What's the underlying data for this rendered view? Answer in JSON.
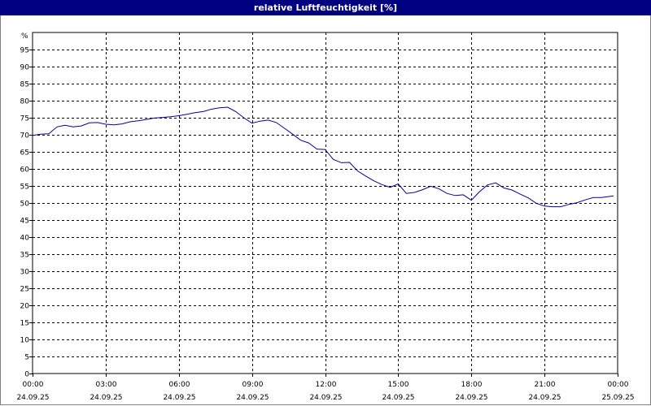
{
  "window": {
    "title": "relative Luftfeuchtigkeit [%]"
  },
  "colors": {
    "titlebar": "#000080",
    "line": "#0000a0",
    "grid": "#000000"
  },
  "chart_data": {
    "type": "line",
    "title": "relative Luftfeuchtigkeit [%]",
    "ylabel": "%",
    "xlabel": "",
    "ylim": [
      0,
      100
    ],
    "yticks": [
      0,
      5,
      10,
      15,
      20,
      25,
      30,
      35,
      40,
      45,
      50,
      55,
      60,
      65,
      70,
      75,
      80,
      85,
      90,
      95
    ],
    "xlim": [
      "24.09.25 00:00",
      "25.09.25 00:00"
    ],
    "xticks": [
      {
        "time": "00:00",
        "date": "24.09.25"
      },
      {
        "time": "03:00",
        "date": "24.09.25"
      },
      {
        "time": "06:00",
        "date": "24.09.25"
      },
      {
        "time": "09:00",
        "date": "24.09.25"
      },
      {
        "time": "12:00",
        "date": "24.09.25"
      },
      {
        "time": "15:00",
        "date": "24.09.25"
      },
      {
        "time": "18:00",
        "date": "24.09.25"
      },
      {
        "time": "21:00",
        "date": "24.09.25"
      },
      {
        "time": "00:00",
        "date": "25.09.25"
      }
    ],
    "grid": true,
    "series": [
      {
        "points": [
          [
            "24.09.25 00:00",
            69.8
          ],
          [
            "24.09.25 00:20",
            70.2
          ],
          [
            "24.09.25 00:40",
            70.3
          ],
          [
            "24.09.25 01:00",
            72.3
          ],
          [
            "24.09.25 01:20",
            72.8
          ],
          [
            "24.09.25 01:40",
            72.3
          ],
          [
            "24.09.25 02:00",
            72.6
          ],
          [
            "24.09.25 02:20",
            73.5
          ],
          [
            "24.09.25 02:40",
            73.6
          ],
          [
            "24.09.25 03:00",
            73.1
          ],
          [
            "24.09.25 03:20",
            72.9
          ],
          [
            "24.09.25 03:40",
            73.2
          ],
          [
            "24.09.25 04:00",
            73.8
          ],
          [
            "24.09.25 04:20",
            74.1
          ],
          [
            "24.09.25 04:40",
            74.5
          ],
          [
            "24.09.25 05:00",
            74.9
          ],
          [
            "24.09.25 05:20",
            75.1
          ],
          [
            "24.09.25 05:40",
            75.3
          ],
          [
            "24.09.25 06:00",
            75.6
          ],
          [
            "24.09.25 06:20",
            76.0
          ],
          [
            "24.09.25 06:40",
            76.5
          ],
          [
            "24.09.25 07:00",
            76.8
          ],
          [
            "24.09.25 07:20",
            77.5
          ],
          [
            "24.09.25 07:40",
            77.9
          ],
          [
            "24.09.25 08:00",
            78.1
          ],
          [
            "24.09.25 08:20",
            76.8
          ],
          [
            "24.09.25 08:40",
            75.0
          ],
          [
            "24.09.25 09:00",
            73.4
          ],
          [
            "24.09.25 09:20",
            74.0
          ],
          [
            "24.09.25 09:40",
            74.3
          ],
          [
            "24.09.25 10:00",
            73.6
          ],
          [
            "24.09.25 10:20",
            71.9
          ],
          [
            "24.09.25 10:40",
            70.2
          ],
          [
            "24.09.25 11:00",
            68.4
          ],
          [
            "24.09.25 11:20",
            67.6
          ],
          [
            "24.09.25 11:40",
            65.8
          ],
          [
            "24.09.25 12:00",
            65.7
          ],
          [
            "24.09.25 12:20",
            62.8
          ],
          [
            "24.09.25 12:40",
            61.8
          ],
          [
            "24.09.25 13:00",
            61.9
          ],
          [
            "24.09.25 13:20",
            59.4
          ],
          [
            "24.09.25 13:40",
            57.9
          ],
          [
            "24.09.25 14:00",
            56.5
          ],
          [
            "24.09.25 14:20",
            55.4
          ],
          [
            "24.09.25 14:40",
            54.6
          ],
          [
            "24.09.25 15:00",
            55.6
          ],
          [
            "24.09.25 15:20",
            52.8
          ],
          [
            "24.09.25 15:40",
            53.1
          ],
          [
            "24.09.25 16:00",
            53.9
          ],
          [
            "24.09.25 16:20",
            54.9
          ],
          [
            "24.09.25 16:40",
            54.2
          ],
          [
            "24.09.25 17:00",
            52.8
          ],
          [
            "24.09.25 17:20",
            52.2
          ],
          [
            "24.09.25 17:40",
            52.4
          ],
          [
            "24.09.25 18:00",
            50.8
          ],
          [
            "24.09.25 18:20",
            53.3
          ],
          [
            "24.09.25 18:40",
            55.3
          ],
          [
            "24.09.25 19:00",
            55.9
          ],
          [
            "24.09.25 19:20",
            54.4
          ],
          [
            "24.09.25 19:40",
            53.8
          ],
          [
            "24.09.25 20:00",
            52.6
          ],
          [
            "24.09.25 20:20",
            51.5
          ],
          [
            "24.09.25 20:40",
            49.9
          ],
          [
            "24.09.25 21:00",
            49.1
          ],
          [
            "24.09.25 21:20",
            48.9
          ],
          [
            "24.09.25 21:40",
            48.9
          ],
          [
            "24.09.25 22:00",
            49.6
          ],
          [
            "24.09.25 22:20",
            50.1
          ],
          [
            "24.09.25 22:40",
            50.9
          ],
          [
            "24.09.25 23:00",
            51.6
          ],
          [
            "24.09.25 23:20",
            51.6
          ],
          [
            "24.09.25 23:50",
            52.1
          ]
        ]
      }
    ]
  }
}
